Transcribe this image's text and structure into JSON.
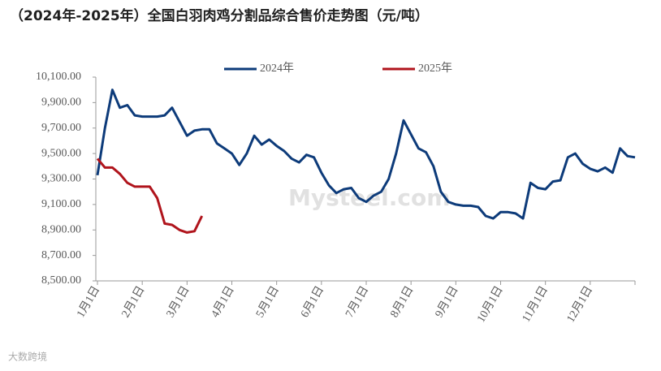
{
  "chart_data": {
    "type": "line",
    "title": "（2024年-2025年）全国白羽肉鸡分割品综合售价走势图（元/吨）",
    "watermark": "Mysteel.com",
    "source": "大数跨境",
    "categories": [
      "1月1日",
      null,
      null,
      null,
      null,
      null,
      "2月1日",
      null,
      null,
      null,
      null,
      null,
      "3月1日",
      null,
      null,
      null,
      null,
      null,
      "4月1日",
      null,
      null,
      null,
      null,
      null,
      "5月1日",
      null,
      null,
      null,
      null,
      null,
      "6月1日",
      null,
      null,
      null,
      null,
      null,
      "7月1日",
      null,
      null,
      null,
      null,
      null,
      "8月1日",
      null,
      null,
      null,
      null,
      null,
      "9月1日",
      null,
      null,
      null,
      null,
      null,
      "10月1日",
      null,
      null,
      null,
      null,
      null,
      "11月1日",
      null,
      null,
      null,
      null,
      null,
      "12月1日",
      null,
      null,
      null,
      null,
      null,
      null
    ],
    "series": [
      {
        "name": "2024年",
        "color": "#0d3b7a",
        "values": [
          9330,
          9700,
          10000,
          9860,
          9880,
          9800,
          9790,
          9790,
          9790,
          9800,
          9860,
          9750,
          9640,
          9680,
          9690,
          9690,
          9580,
          9540,
          9500,
          9410,
          9500,
          9640,
          9570,
          9610,
          9560,
          9520,
          9460,
          9430,
          9490,
          9470,
          9350,
          9250,
          9190,
          9220,
          9230,
          9150,
          9120,
          9170,
          9200,
          9300,
          9500,
          9760,
          9650,
          9540,
          9510,
          9400,
          9200,
          9120,
          9100,
          9090,
          9090,
          9080,
          9010,
          8990,
          9040,
          9040,
          9030,
          8990,
          9270,
          9230,
          9220,
          9280,
          9290,
          9470,
          9500,
          9420,
          9380,
          9360,
          9390,
          9350,
          9540,
          9480,
          9470
        ]
      },
      {
        "name": "2025年",
        "color": "#b0141c",
        "values": [
          9460,
          9390,
          9390,
          9340,
          9270,
          9240,
          9240,
          9240,
          9150,
          8950,
          8940,
          8900,
          8880,
          8890,
          9010,
          null,
          null,
          null,
          null,
          null,
          null,
          null,
          null,
          null,
          null,
          null,
          null,
          null,
          null,
          null,
          null,
          null,
          null,
          null,
          null,
          null,
          null,
          null,
          null,
          null,
          null,
          null,
          null,
          null,
          null,
          null,
          null,
          null,
          null,
          null,
          null,
          null,
          null,
          null,
          null,
          null,
          null,
          null,
          null,
          null,
          null,
          null,
          null,
          null,
          null,
          null,
          null,
          null,
          null,
          null,
          null,
          null,
          null
        ]
      }
    ],
    "ylim": [
      8500,
      10100
    ],
    "yticks": [
      {
        "value": 8500,
        "label": "8,500.00"
      },
      {
        "value": 8700,
        "label": "8,700.00"
      },
      {
        "value": 8900,
        "label": "8,900.00"
      },
      {
        "value": 9100,
        "label": "9,100.00"
      },
      {
        "value": 9300,
        "label": "9,300.00"
      },
      {
        "value": 9500,
        "label": "9,500.00"
      },
      {
        "value": 9700,
        "label": "9,700.00"
      },
      {
        "value": 9900,
        "label": "9,900.00"
      },
      {
        "value": 10100,
        "label": "10,100.00"
      }
    ],
    "grid": false,
    "legend": "top"
  }
}
